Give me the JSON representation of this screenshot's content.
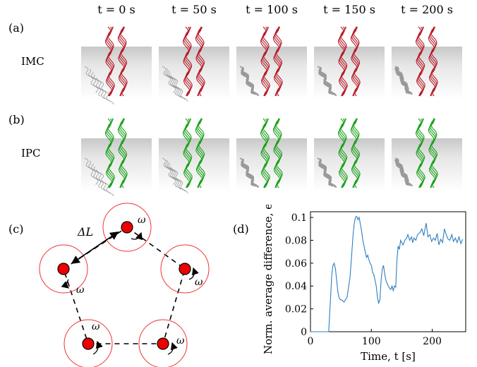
{
  "panels": {
    "a": {
      "label": "(a)",
      "row_label": "IMC",
      "color": "#b81d2a"
    },
    "b": {
      "label": "(b)",
      "row_label": "IPC",
      "color": "#1aa21a"
    },
    "c": {
      "label": "(c)",
      "delta_label": "ΔL",
      "omega_label": "ω"
    },
    "d": {
      "label": "(d)"
    }
  },
  "time_columns": [
    "t = 0 s",
    "t = 50 s",
    "t = 100 s",
    "t = 150 s",
    "t = 200 s"
  ],
  "chart_data": {
    "type": "line",
    "xlabel": "Time, t [s]",
    "ylabel": "Norm. average difference, e",
    "xlim": [
      0,
      255
    ],
    "ylim": [
      0,
      0.105
    ],
    "xticks": [
      "0",
      "100",
      "200"
    ],
    "yticks": [
      "0",
      "0.02",
      "0.04",
      "0.06",
      "0.08",
      "0.1"
    ],
    "line_color": "#2f7ebf",
    "x": [
      0,
      30,
      31,
      33,
      35,
      37,
      39,
      41,
      43,
      45,
      47,
      49,
      51,
      55,
      60,
      65,
      68,
      70,
      72,
      74,
      76,
      78,
      80,
      82,
      84,
      86,
      88,
      90,
      92,
      94,
      96,
      98,
      100,
      102,
      104,
      106,
      108,
      110,
      112,
      114,
      116,
      118,
      120,
      122,
      124,
      126,
      128,
      130,
      132,
      134,
      136,
      138,
      140,
      142,
      144,
      146,
      148,
      150,
      152,
      155,
      158,
      160,
      163,
      166,
      168,
      170,
      173,
      176,
      180,
      183,
      186,
      190,
      193,
      196,
      199,
      202,
      205,
      208,
      211,
      214,
      217,
      220,
      223,
      226,
      229,
      232,
      235,
      238,
      241,
      244,
      247,
      250
    ],
    "y": [
      0,
      0,
      0.01,
      0.03,
      0.05,
      0.058,
      0.06,
      0.055,
      0.045,
      0.035,
      0.03,
      0.028,
      0.028,
      0.026,
      0.03,
      0.048,
      0.07,
      0.085,
      0.095,
      0.1,
      0.101,
      0.098,
      0.1,
      0.094,
      0.088,
      0.08,
      0.075,
      0.07,
      0.065,
      0.067,
      0.063,
      0.06,
      0.058,
      0.052,
      0.05,
      0.045,
      0.04,
      0.03,
      0.025,
      0.028,
      0.045,
      0.055,
      0.058,
      0.05,
      0.045,
      0.042,
      0.04,
      0.038,
      0.037,
      0.04,
      0.036,
      0.04,
      0.039,
      0.062,
      0.075,
      0.072,
      0.08,
      0.078,
      0.076,
      0.08,
      0.082,
      0.085,
      0.08,
      0.083,
      0.078,
      0.082,
      0.08,
      0.085,
      0.087,
      0.09,
      0.084,
      0.095,
      0.083,
      0.085,
      0.079,
      0.082,
      0.08,
      0.086,
      0.076,
      0.081,
      0.078,
      0.09,
      0.085,
      0.081,
      0.08,
      0.085,
      0.079,
      0.082,
      0.078,
      0.083,
      0.077,
      0.081
    ]
  }
}
